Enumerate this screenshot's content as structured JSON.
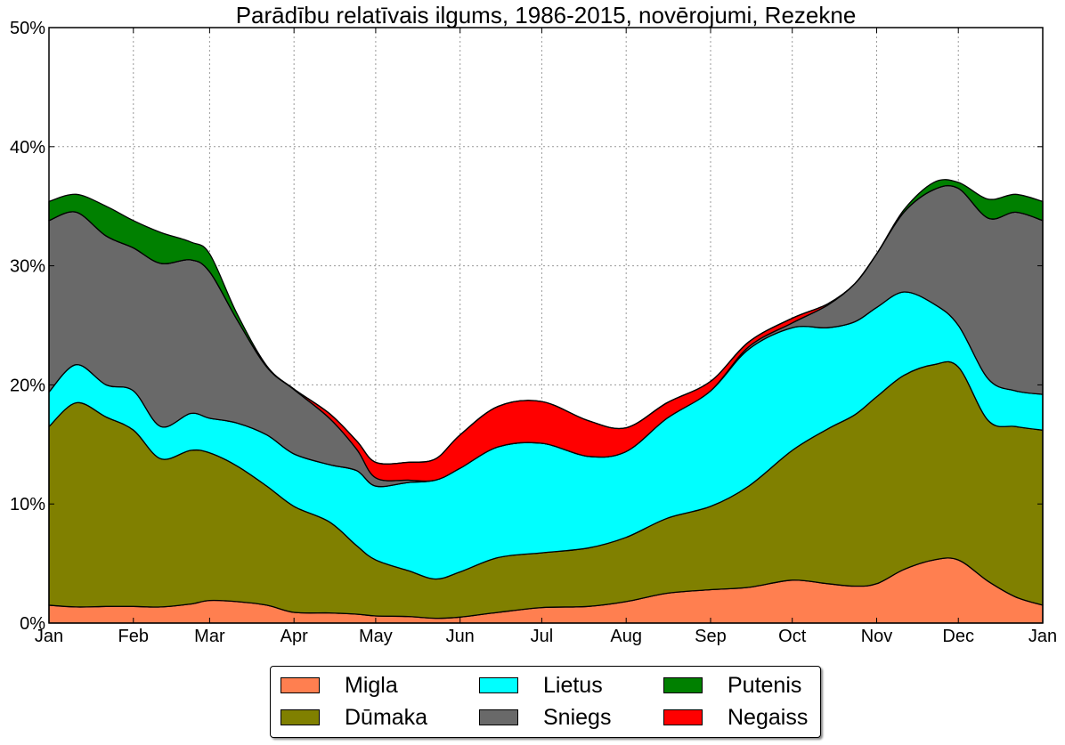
{
  "chart_data": {
    "type": "area",
    "stacked": true,
    "title": "Parādību relatīvais ilgums, 1986-2015, novērojumi, Rezekne",
    "xlabel": "",
    "ylabel": "",
    "x_unit": "day of year",
    "xlim": [
      0,
      365
    ],
    "ylim": [
      0,
      50
    ],
    "grid": true,
    "legend_position": "bottom-center, below plot",
    "x_ticks": [
      {
        "day": 0,
        "label": "Jan"
      },
      {
        "day": 31,
        "label": "Feb"
      },
      {
        "day": 59,
        "label": "Mar"
      },
      {
        "day": 90,
        "label": "Apr"
      },
      {
        "day": 120,
        "label": "May"
      },
      {
        "day": 151,
        "label": "Jun"
      },
      {
        "day": 181,
        "label": "Jul"
      },
      {
        "day": 212,
        "label": "Aug"
      },
      {
        "day": 243,
        "label": "Sep"
      },
      {
        "day": 273,
        "label": "Oct"
      },
      {
        "day": 304,
        "label": "Nov"
      },
      {
        "day": 334,
        "label": "Dec"
      },
      {
        "day": 365,
        "label": "Jan"
      }
    ],
    "y_ticks": [
      {
        "value": 0,
        "label": "0%"
      },
      {
        "value": 10,
        "label": "10%"
      },
      {
        "value": 20,
        "label": "20%"
      },
      {
        "value": 30,
        "label": "30%"
      },
      {
        "value": 40,
        "label": "40%"
      },
      {
        "value": 50,
        "label": "50%"
      }
    ],
    "x": [
      0,
      10,
      21,
      31,
      41,
      52,
      59,
      69,
      80,
      90,
      103,
      113,
      120,
      132,
      142,
      151,
      165,
      181,
      198,
      212,
      227,
      243,
      257,
      273,
      286,
      296,
      304,
      314,
      325,
      334,
      345,
      355,
      365
    ],
    "series": [
      {
        "name": "Migla",
        "color": "#ff7f50",
        "values": [
          1.5,
          1.35,
          1.4,
          1.4,
          1.35,
          1.6,
          1.9,
          1.8,
          1.5,
          0.9,
          0.85,
          0.75,
          0.6,
          0.55,
          0.4,
          0.5,
          0.9,
          1.3,
          1.4,
          1.8,
          2.5,
          2.8,
          3.0,
          3.6,
          3.3,
          3.1,
          3.3,
          4.5,
          5.3,
          5.3,
          3.5,
          2.2,
          1.5
        ]
      },
      {
        "name": "Dūmaka",
        "color": "#808000",
        "values": [
          15.0,
          17.15,
          15.9,
          14.8,
          12.45,
          12.9,
          12.4,
          11.4,
          10.0,
          8.9,
          7.65,
          5.75,
          4.7,
          3.85,
          3.3,
          3.8,
          4.6,
          4.6,
          4.9,
          5.4,
          6.3,
          7.0,
          8.5,
          10.9,
          13.0,
          14.4,
          15.7,
          16.3,
          16.4,
          16.2,
          13.5,
          14.3,
          14.7
        ]
      },
      {
        "name": "Lietus",
        "color": "#00ffff",
        "values": [
          2.9,
          3.2,
          2.7,
          3.3,
          2.7,
          3.1,
          2.9,
          3.6,
          4.3,
          4.4,
          4.8,
          6.3,
          6.2,
          7.4,
          8.3,
          8.7,
          9.3,
          9.2,
          7.7,
          7.2,
          8.4,
          9.7,
          11.5,
          10.3,
          8.5,
          7.8,
          7.5,
          7.0,
          5.1,
          3.5,
          3.5,
          3.0,
          3.0
        ]
      },
      {
        "name": "Sniegs",
        "color": "#696969",
        "values": [
          14.4,
          12.8,
          12.5,
          12.0,
          13.7,
          12.9,
          12.3,
          8.7,
          5.7,
          5.4,
          3.9,
          1.8,
          0.7,
          0.2,
          0,
          0,
          0,
          0,
          0,
          0,
          0,
          0,
          0.2,
          0.4,
          1.9,
          3.2,
          4.5,
          6.7,
          9.6,
          11.5,
          13.5,
          15.0,
          14.6
        ]
      },
      {
        "name": "Negaiss",
        "color": "#ff0000",
        "values": [
          0,
          0,
          0,
          0,
          0,
          0,
          0,
          0,
          0,
          0.05,
          0.4,
          0.7,
          1.3,
          1.5,
          1.8,
          2.8,
          3.4,
          3.5,
          3.0,
          2.0,
          1.3,
          0.8,
          0.4,
          0.4,
          0.1,
          0,
          0,
          0,
          0,
          0,
          0,
          0,
          0
        ]
      },
      {
        "name": "Putenis",
        "color": "#008000",
        "values": [
          1.6,
          1.5,
          2.5,
          2.3,
          2.6,
          1.5,
          1.5,
          0.5,
          0.1,
          0,
          0,
          0,
          0,
          0,
          0,
          0,
          0,
          0,
          0,
          0,
          0,
          0,
          0,
          0,
          0,
          0,
          0,
          0.2,
          0.6,
          0.5,
          1.6,
          1.5,
          1.6
        ]
      }
    ],
    "legend": {
      "columns": 3,
      "entries": [
        "Migla",
        "Dūmaka",
        "Lietus",
        "Sniegs",
        "Putenis",
        "Negaiss"
      ]
    }
  }
}
